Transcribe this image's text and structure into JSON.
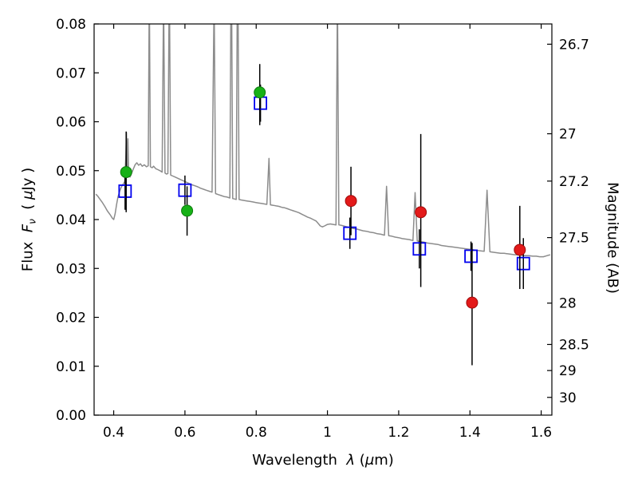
{
  "labels": {
    "x_prefix": "Wavelength  ",
    "x_lambda": "λ",
    "x_mid": " (",
    "x_mu": "μ",
    "x_end": "m)",
    "yl_prefix": "Flux  ",
    "yl_F": "F",
    "yl_sub": "ν",
    "yl_mid": "  ( ",
    "yl_mu": "μ",
    "yl_end": "Jy )",
    "yr": "Magnitude (AB)"
  },
  "chart_data": {
    "type": "line",
    "title": "",
    "xlabel": "Wavelength λ (μm)",
    "ylabel": "Flux Fν (μJy)",
    "ylabel_right": "Magnitude (AB)",
    "xlim": [
      0.345,
      1.63
    ],
    "ylim": [
      0.0,
      0.08
    ],
    "grid": false,
    "legend": null,
    "frame_color": "#000000",
    "xticks": {
      "values": [
        0.4,
        0.6,
        0.8,
        1.0,
        1.2,
        1.4,
        1.6
      ],
      "labels": [
        "0.4",
        "0.6",
        "0.8",
        "1",
        "1.2",
        "1.4",
        "1.6"
      ]
    },
    "yticks_left": {
      "values": [
        0.0,
        0.01,
        0.02,
        0.03,
        0.04,
        0.05,
        0.06,
        0.07,
        0.08
      ],
      "labels": [
        "0.00",
        "0.01",
        "0.02",
        "0.03",
        "0.04",
        "0.05",
        "0.06",
        "0.07",
        "0.08"
      ]
    },
    "yticks_right": {
      "ab_zeropoint_ujy": 23.9,
      "magnitudes": [
        26.7,
        27.0,
        27.2,
        27.5,
        28.0,
        28.5,
        29.0,
        30.0
      ],
      "labels": [
        "26.7",
        "27",
        "27.2",
        "27.5",
        "28",
        "28.5",
        "29",
        "30"
      ]
    },
    "series": [
      {
        "name": "model-spectrum",
        "type": "line",
        "color": "#8c8c8c",
        "linewidth": 1.5,
        "points": [
          [
            0.35,
            0.0452
          ],
          [
            0.355,
            0.0448
          ],
          [
            0.36,
            0.0443
          ],
          [
            0.368,
            0.0435
          ],
          [
            0.375,
            0.0427
          ],
          [
            0.382,
            0.0418
          ],
          [
            0.39,
            0.041
          ],
          [
            0.396,
            0.0403
          ],
          [
            0.4,
            0.04
          ],
          [
            0.404,
            0.0412
          ],
          [
            0.408,
            0.043
          ],
          [
            0.412,
            0.0446
          ],
          [
            0.416,
            0.0456
          ],
          [
            0.42,
            0.0464
          ],
          [
            0.424,
            0.047
          ],
          [
            0.428,
            0.0474
          ],
          [
            0.431,
            0.0478
          ],
          [
            0.434,
            0.053
          ],
          [
            0.436,
            0.0578
          ],
          [
            0.438,
            0.0488
          ],
          [
            0.44,
            0.0565
          ],
          [
            0.442,
            0.0492
          ],
          [
            0.446,
            0.0487
          ],
          [
            0.45,
            0.0494
          ],
          [
            0.455,
            0.0503
          ],
          [
            0.46,
            0.0512
          ],
          [
            0.465,
            0.0516
          ],
          [
            0.47,
            0.0511
          ],
          [
            0.475,
            0.0514
          ],
          [
            0.48,
            0.0509
          ],
          [
            0.486,
            0.0512
          ],
          [
            0.492,
            0.0508
          ],
          [
            0.497,
            0.051
          ],
          [
            0.5,
            0.088
          ],
          [
            0.503,
            0.0508
          ],
          [
            0.508,
            0.0506
          ],
          [
            0.512,
            0.0509
          ],
          [
            0.518,
            0.0504
          ],
          [
            0.524,
            0.0502
          ],
          [
            0.53,
            0.05
          ],
          [
            0.536,
            0.0497
          ],
          [
            0.54,
            0.086
          ],
          [
            0.544,
            0.0495
          ],
          [
            0.548,
            0.0493
          ],
          [
            0.552,
            0.0494
          ],
          [
            0.556,
            0.09
          ],
          [
            0.56,
            0.0491
          ],
          [
            0.566,
            0.0489
          ],
          [
            0.572,
            0.0487
          ],
          [
            0.578,
            0.0485
          ],
          [
            0.584,
            0.0483
          ],
          [
            0.59,
            0.0481
          ],
          [
            0.596,
            0.0479
          ],
          [
            0.602,
            0.0477
          ],
          [
            0.608,
            0.0475
          ],
          [
            0.614,
            0.0473
          ],
          [
            0.62,
            0.0471
          ],
          [
            0.628,
            0.0469
          ],
          [
            0.636,
            0.0467
          ],
          [
            0.644,
            0.0464
          ],
          [
            0.652,
            0.0462
          ],
          [
            0.66,
            0.046
          ],
          [
            0.668,
            0.0458
          ],
          [
            0.676,
            0.0456
          ],
          [
            0.682,
            0.086
          ],
          [
            0.686,
            0.0453
          ],
          [
            0.694,
            0.0451
          ],
          [
            0.702,
            0.0449
          ],
          [
            0.71,
            0.0447
          ],
          [
            0.718,
            0.0446
          ],
          [
            0.726,
            0.0444
          ],
          [
            0.73,
            0.098
          ],
          [
            0.734,
            0.0443
          ],
          [
            0.74,
            0.0442
          ],
          [
            0.744,
            0.0441
          ],
          [
            0.748,
            0.1
          ],
          [
            0.752,
            0.0441
          ],
          [
            0.758,
            0.044
          ],
          [
            0.766,
            0.0439
          ],
          [
            0.774,
            0.0438
          ],
          [
            0.782,
            0.0437
          ],
          [
            0.79,
            0.0436
          ],
          [
            0.798,
            0.0435
          ],
          [
            0.806,
            0.0434
          ],
          [
            0.814,
            0.0433
          ],
          [
            0.822,
            0.0432
          ],
          [
            0.83,
            0.0431
          ],
          [
            0.836,
            0.0525
          ],
          [
            0.84,
            0.043
          ],
          [
            0.848,
            0.0429
          ],
          [
            0.856,
            0.0428
          ],
          [
            0.864,
            0.0427
          ],
          [
            0.872,
            0.0425
          ],
          [
            0.88,
            0.0424
          ],
          [
            0.888,
            0.0422
          ],
          [
            0.896,
            0.042
          ],
          [
            0.904,
            0.0418
          ],
          [
            0.912,
            0.0416
          ],
          [
            0.92,
            0.0414
          ],
          [
            0.928,
            0.0411
          ],
          [
            0.936,
            0.0408
          ],
          [
            0.944,
            0.0405
          ],
          [
            0.952,
            0.0403
          ],
          [
            0.96,
            0.04
          ],
          [
            0.968,
            0.0397
          ],
          [
            0.974,
            0.0392
          ],
          [
            0.98,
            0.0387
          ],
          [
            0.986,
            0.0385
          ],
          [
            0.992,
            0.0387
          ],
          [
            1.0,
            0.039
          ],
          [
            1.008,
            0.0391
          ],
          [
            1.016,
            0.039
          ],
          [
            1.024,
            0.0389
          ],
          [
            1.028,
            0.087
          ],
          [
            1.032,
            0.0389
          ],
          [
            1.04,
            0.0388
          ],
          [
            1.05,
            0.0386
          ],
          [
            1.06,
            0.0384
          ],
          [
            1.07,
            0.0382
          ],
          [
            1.08,
            0.0381
          ],
          [
            1.09,
            0.0379
          ],
          [
            1.1,
            0.0377
          ],
          [
            1.11,
            0.0376
          ],
          [
            1.12,
            0.0374
          ],
          [
            1.13,
            0.0373
          ],
          [
            1.14,
            0.0371
          ],
          [
            1.15,
            0.037
          ],
          [
            1.16,
            0.0368
          ],
          [
            1.166,
            0.0468
          ],
          [
            1.172,
            0.0367
          ],
          [
            1.18,
            0.0366
          ],
          [
            1.19,
            0.0364
          ],
          [
            1.2,
            0.0363
          ],
          [
            1.21,
            0.0361
          ],
          [
            1.22,
            0.036
          ],
          [
            1.23,
            0.0359
          ],
          [
            1.24,
            0.0357
          ],
          [
            1.246,
            0.0455
          ],
          [
            1.252,
            0.0356
          ],
          [
            1.26,
            0.0355
          ],
          [
            1.27,
            0.0354
          ],
          [
            1.28,
            0.0352
          ],
          [
            1.29,
            0.0351
          ],
          [
            1.3,
            0.035
          ],
          [
            1.31,
            0.0349
          ],
          [
            1.32,
            0.0347
          ],
          [
            1.33,
            0.0346
          ],
          [
            1.34,
            0.0345
          ],
          [
            1.35,
            0.0344
          ],
          [
            1.36,
            0.0343
          ],
          [
            1.37,
            0.0342
          ],
          [
            1.38,
            0.0341
          ],
          [
            1.39,
            0.034
          ],
          [
            1.4,
            0.0339
          ],
          [
            1.41,
            0.0338
          ],
          [
            1.42,
            0.0337
          ],
          [
            1.43,
            0.0336
          ],
          [
            1.44,
            0.0335
          ],
          [
            1.448,
            0.046
          ],
          [
            1.456,
            0.0334
          ],
          [
            1.466,
            0.0333
          ],
          [
            1.476,
            0.0332
          ],
          [
            1.486,
            0.0331
          ],
          [
            1.496,
            0.0331
          ],
          [
            1.506,
            0.033
          ],
          [
            1.516,
            0.0329
          ],
          [
            1.526,
            0.0328
          ],
          [
            1.536,
            0.0328
          ],
          [
            1.546,
            0.0327
          ],
          [
            1.556,
            0.0326
          ],
          [
            1.566,
            0.0326
          ],
          [
            1.576,
            0.0325
          ],
          [
            1.586,
            0.0325
          ],
          [
            1.596,
            0.0324
          ],
          [
            1.606,
            0.0324
          ],
          [
            1.616,
            0.0326
          ],
          [
            1.625,
            0.0328
          ]
        ]
      },
      {
        "name": "blue-open-squares",
        "type": "scatter",
        "marker": "open-square",
        "fill": "none",
        "edge": "#0000ee",
        "size": 15,
        "errorbar_color": "#000000",
        "points": [
          {
            "x": 0.432,
            "y": 0.0458,
            "ylo": 0.042,
            "yhi": 0.0496
          },
          {
            "x": 0.6,
            "y": 0.046,
            "ylo": 0.043,
            "yhi": 0.049
          },
          {
            "x": 0.812,
            "y": 0.0638,
            "ylo": 0.06,
            "yhi": 0.0676
          },
          {
            "x": 1.063,
            "y": 0.0372,
            "ylo": 0.034,
            "yhi": 0.0404
          },
          {
            "x": 1.258,
            "y": 0.034,
            "ylo": 0.03,
            "yhi": 0.038
          },
          {
            "x": 1.403,
            "y": 0.0325,
            "ylo": 0.0295,
            "yhi": 0.0355
          },
          {
            "x": 1.55,
            "y": 0.031,
            "ylo": 0.0258,
            "yhi": 0.0362
          }
        ]
      },
      {
        "name": "green-circles",
        "type": "scatter",
        "marker": "circle",
        "fill": "#17b117",
        "edge": "#0d7a0d",
        "size": 14,
        "errorbar_color": "#000000",
        "points": [
          {
            "x": 0.435,
            "y": 0.0497,
            "ylo": 0.0415,
            "yhi": 0.058
          },
          {
            "x": 0.606,
            "y": 0.0418,
            "ylo": 0.0367,
            "yhi": 0.0468
          },
          {
            "x": 0.81,
            "y": 0.066,
            "ylo": 0.0593,
            "yhi": 0.0718
          }
        ]
      },
      {
        "name": "red-circles",
        "type": "scatter",
        "marker": "circle",
        "fill": "#e31a1a",
        "edge": "#9e0b0b",
        "size": 14,
        "errorbar_color": "#000000",
        "points": [
          {
            "x": 1.066,
            "y": 0.0438,
            "ylo": 0.0368,
            "yhi": 0.0508
          },
          {
            "x": 1.262,
            "y": 0.0415,
            "ylo": 0.0262,
            "yhi": 0.0575
          },
          {
            "x": 1.406,
            "y": 0.023,
            "ylo": 0.0102,
            "yhi": 0.0352
          },
          {
            "x": 1.54,
            "y": 0.0338,
            "ylo": 0.0258,
            "yhi": 0.0428
          }
        ]
      }
    ]
  }
}
